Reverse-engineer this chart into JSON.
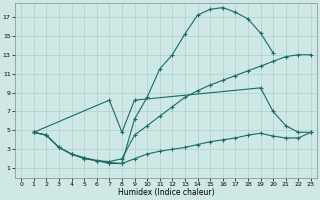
{
  "title": "",
  "xlabel": "Humidex (Indice chaleur)",
  "xlim": [
    -0.5,
    23.5
  ],
  "ylim": [
    0,
    18.5
  ],
  "xticks": [
    0,
    1,
    2,
    3,
    4,
    5,
    6,
    7,
    8,
    9,
    10,
    11,
    12,
    13,
    14,
    15,
    16,
    17,
    18,
    19,
    20,
    21,
    22,
    23
  ],
  "yticks": [
    1,
    3,
    5,
    7,
    9,
    11,
    13,
    15,
    17
  ],
  "background_color": "#cde8e5",
  "grid_color": "#b0d0ce",
  "line_color": "#1a6b64",
  "curve1_x": [
    1,
    2,
    3,
    4,
    5,
    6,
    7,
    8,
    9,
    10,
    11,
    12,
    13,
    14,
    15,
    16,
    17,
    18,
    19,
    20
  ],
  "curve1_y": [
    4.8,
    4.5,
    3.2,
    2.5,
    2.1,
    1.8,
    1.5,
    1.5,
    6.2,
    8.5,
    11.5,
    13.0,
    15.2,
    17.2,
    17.8,
    18.0,
    17.5,
    16.8,
    15.3,
    13.2
  ],
  "curve2_x": [
    1,
    2,
    3,
    4,
    5,
    6,
    7,
    8,
    9,
    10,
    11,
    12,
    13,
    14,
    15,
    16,
    17,
    18,
    19,
    20,
    21,
    22,
    23
  ],
  "curve2_y": [
    4.8,
    4.5,
    3.2,
    2.5,
    2.1,
    1.8,
    1.7,
    2.0,
    4.5,
    5.5,
    6.5,
    7.5,
    8.5,
    9.2,
    9.8,
    10.3,
    10.8,
    11.3,
    11.8,
    12.3,
    12.8,
    13.0,
    13.0
  ],
  "curve3_x": [
    1,
    7,
    8,
    9,
    19,
    20,
    21,
    22,
    23
  ],
  "curve3_y": [
    4.8,
    8.2,
    4.8,
    8.2,
    9.5,
    7.0,
    5.5,
    4.8,
    4.8
  ],
  "curve4_x": [
    1,
    2,
    3,
    4,
    5,
    6,
    7,
    8,
    9,
    10,
    11,
    12,
    13,
    14,
    15,
    16,
    17,
    18,
    19,
    20,
    21,
    22,
    23
  ],
  "curve4_y": [
    4.8,
    4.5,
    3.2,
    2.5,
    2.0,
    1.8,
    1.6,
    1.5,
    2.0,
    2.5,
    2.8,
    3.0,
    3.2,
    3.5,
    3.8,
    4.0,
    4.2,
    4.5,
    4.7,
    4.4,
    4.2,
    4.2,
    4.8
  ]
}
